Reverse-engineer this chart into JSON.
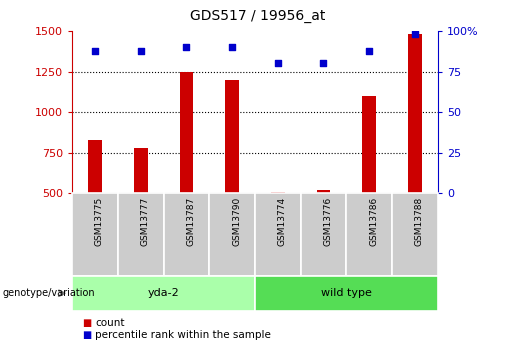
{
  "title": "GDS517 / 19956_at",
  "samples": [
    "GSM13775",
    "GSM13777",
    "GSM13787",
    "GSM13790",
    "GSM13774",
    "GSM13776",
    "GSM13786",
    "GSM13788"
  ],
  "counts": [
    830,
    780,
    1250,
    1200,
    510,
    520,
    1100,
    1480
  ],
  "percentile_ranks": [
    88,
    88,
    90,
    90,
    80,
    80,
    88,
    98
  ],
  "groups": [
    {
      "label": "yda-2",
      "start": 0,
      "end": 4,
      "color": "#aaffaa"
    },
    {
      "label": "wild type",
      "start": 4,
      "end": 8,
      "color": "#55dd55"
    }
  ],
  "ylim_left": [
    500,
    1500
  ],
  "ylim_right": [
    0,
    100
  ],
  "yticks_left": [
    500,
    750,
    1000,
    1250,
    1500
  ],
  "yticks_right": [
    0,
    25,
    50,
    75,
    100
  ],
  "bar_color": "#cc0000",
  "dot_color": "#0000cc",
  "bg_color": "#ffffff",
  "plot_bg": "#ffffff",
  "bar_width": 0.3,
  "xlabel_color": "#cc0000",
  "ylabel_right_color": "#0000cc",
  "legend_count_color": "#cc0000",
  "legend_pct_color": "#0000cc",
  "genotype_label": "genotype/variation",
  "legend_count": "count",
  "legend_pct": "percentile rank within the sample",
  "sample_box_color": "#cccccc",
  "figsize": [
    5.15,
    3.45
  ],
  "dpi": 100
}
